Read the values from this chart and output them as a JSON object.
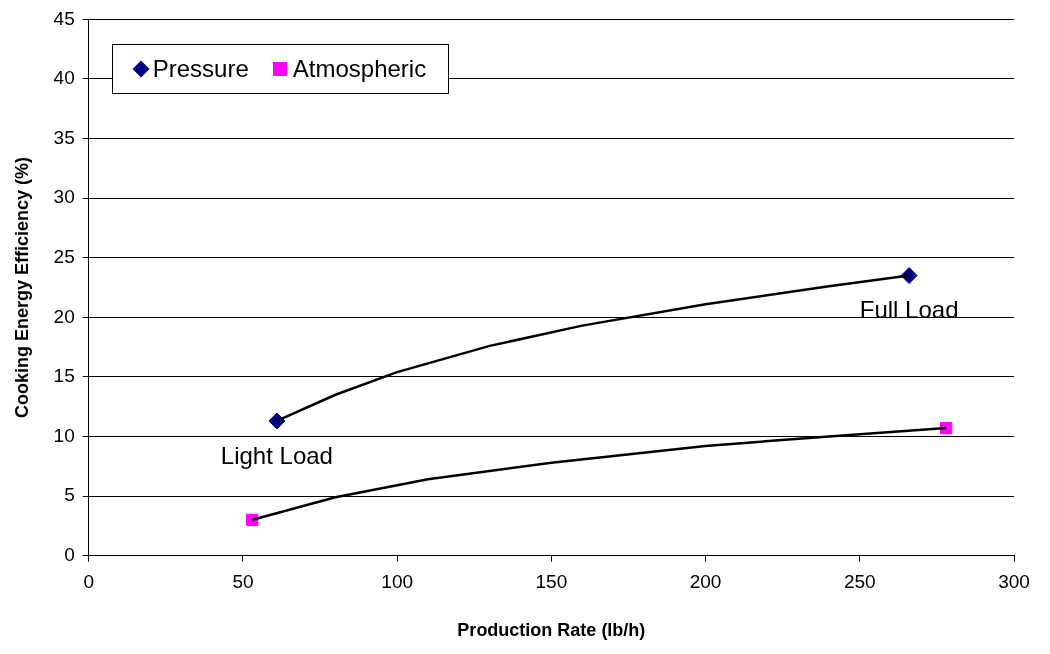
{
  "chart_data": {
    "type": "scatter",
    "xlabel": "Production Rate (lb/h)",
    "ylabel": "Cooking Energy Efficiency (%)",
    "series": [
      {
        "name": "Pressure",
        "color": "#000080",
        "marker": "diamond",
        "x": [
          61,
          266
        ],
        "values": [
          11.3,
          23.5
        ]
      },
      {
        "name": "Atmospheric",
        "color": "#ff00ff",
        "marker": "square",
        "x": [
          53,
          278
        ],
        "values": [
          3.0,
          10.7
        ]
      },
      {
        "type": "line",
        "color": "#000000",
        "marker": "none",
        "x": [
          61,
          80,
          100,
          130,
          160,
          200,
          240,
          266
        ],
        "values": [
          11.3,
          13.5,
          15.4,
          17.6,
          19.3,
          21.1,
          22.6,
          23.5
        ]
      },
      {
        "type": "line",
        "color": "#000000",
        "marker": "none",
        "x": [
          53,
          80,
          110,
          150,
          200,
          240,
          278
        ],
        "values": [
          3.0,
          4.9,
          6.4,
          7.8,
          9.2,
          10.0,
          10.7
        ]
      }
    ],
    "xlim": [
      0,
      300
    ],
    "xticks": [
      0,
      50,
      100,
      150,
      200,
      250,
      300
    ],
    "ylim": [
      0,
      45
    ],
    "yticks": [
      0,
      5,
      10,
      15,
      20,
      25,
      30,
      35,
      40,
      45
    ],
    "grid": "y",
    "legend": "top left",
    "annotations": [
      {
        "text": "Full Load",
        "x": 266,
        "y": 23.5
      },
      {
        "text": "Light Load",
        "x": 61,
        "y": 11.3
      }
    ]
  }
}
